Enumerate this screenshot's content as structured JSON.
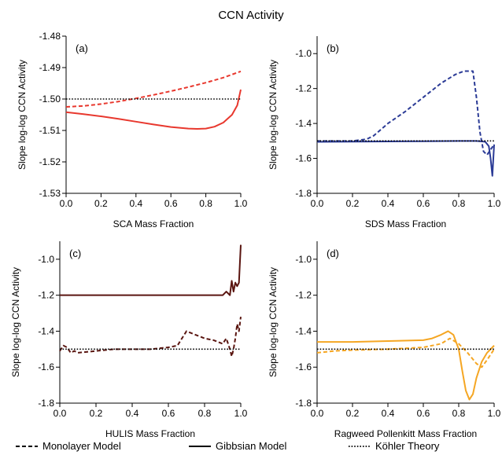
{
  "figure": {
    "title": "CCN Activity",
    "legend": [
      {
        "label": "Monolayer Model",
        "dash": "dashed"
      },
      {
        "label": "Gibbsian Model",
        "dash": "solid"
      },
      {
        "label": "Köhler Theory",
        "dash": "dotted"
      }
    ]
  },
  "chart_data": [
    {
      "type": "line",
      "panel": "(a)",
      "xlabel": "SCA Mass Fraction",
      "ylabel": "Slope log-log CCN Activity",
      "xlim": [
        0,
        1
      ],
      "ylim": [
        -1.53,
        -1.48
      ],
      "xticks": [
        0.0,
        0.2,
        0.4,
        0.6,
        0.8,
        1.0
      ],
      "xtick_labels": [
        "0.0",
        "0.2",
        "0.4",
        "0.6",
        "0.8",
        "1.0"
      ],
      "yticks": [
        -1.48,
        -1.49,
        -1.5,
        -1.51,
        -1.52,
        -1.53
      ],
      "ytick_labels": [
        "-1.48",
        "-1.49",
        "-1.50",
        "-1.51",
        "-1.52",
        "-1.53"
      ],
      "color": "#e8382e",
      "series": [
        {
          "name": "Monolayer Model",
          "style": "dashed",
          "x": [
            0,
            0.1,
            0.2,
            0.3,
            0.4,
            0.5,
            0.6,
            0.7,
            0.8,
            0.9,
            1.0
          ],
          "y": [
            -1.5025,
            -1.5022,
            -1.5016,
            -1.5008,
            -1.4998,
            -1.4987,
            -1.4975,
            -1.4962,
            -1.4948,
            -1.4932,
            -1.4912
          ]
        },
        {
          "name": "Gibbsian Model",
          "style": "solid",
          "x": [
            0,
            0.1,
            0.2,
            0.3,
            0.4,
            0.5,
            0.6,
            0.7,
            0.75,
            0.8,
            0.85,
            0.9,
            0.95,
            0.98,
            1.0
          ],
          "y": [
            -1.5042,
            -1.5048,
            -1.5055,
            -1.5063,
            -1.5072,
            -1.5081,
            -1.5089,
            -1.5094,
            -1.5095,
            -1.5094,
            -1.5088,
            -1.5075,
            -1.505,
            -1.502,
            -1.497
          ]
        },
        {
          "name": "Köhler Theory",
          "style": "dotted",
          "x": [
            0,
            1
          ],
          "y": [
            -1.5,
            -1.5
          ]
        }
      ]
    },
    {
      "type": "line",
      "panel": "(b)",
      "xlabel": "SDS Mass Fraction",
      "ylabel": "Slope log-log CCN Activity",
      "xlim": [
        0,
        1
      ],
      "ylim": [
        -1.8,
        -0.9
      ],
      "xticks": [
        0.0,
        0.2,
        0.4,
        0.6,
        0.8,
        1.0
      ],
      "xtick_labels": [
        "0.0",
        "0.2",
        "0.4",
        "0.6",
        "0.8",
        "1.0"
      ],
      "yticks": [
        -1.0,
        -1.2,
        -1.4,
        -1.6,
        -1.8
      ],
      "ytick_labels": [
        "-1.0",
        "-1.2",
        "-1.4",
        "-1.6",
        "-1.8"
      ],
      "color": "#2b3b96",
      "series": [
        {
          "name": "Monolayer Model",
          "style": "dashed",
          "x": [
            0,
            0.1,
            0.2,
            0.28,
            0.32,
            0.4,
            0.5,
            0.6,
            0.7,
            0.78,
            0.83,
            0.88,
            0.9,
            0.92,
            0.94,
            0.96,
            0.98,
            1.0
          ],
          "y": [
            -1.5,
            -1.5,
            -1.5,
            -1.49,
            -1.47,
            -1.4,
            -1.33,
            -1.25,
            -1.17,
            -1.12,
            -1.1,
            -1.1,
            -1.25,
            -1.45,
            -1.56,
            -1.58,
            -1.55,
            -1.52
          ]
        },
        {
          "name": "Gibbsian Model",
          "style": "solid",
          "x": [
            0,
            0.2,
            0.4,
            0.6,
            0.8,
            0.9,
            0.95,
            0.97,
            0.98,
            0.99,
            1.0
          ],
          "y": [
            -1.505,
            -1.504,
            -1.503,
            -1.502,
            -1.5,
            -1.5,
            -1.505,
            -1.53,
            -1.6,
            -1.7,
            -1.52
          ]
        },
        {
          "name": "Köhler Theory",
          "style": "dotted",
          "x": [
            0,
            1
          ],
          "y": [
            -1.5,
            -1.5
          ]
        }
      ]
    },
    {
      "type": "line",
      "panel": "(c)",
      "xlabel": "HULIS Mass Fraction",
      "ylabel": "Slope log-log CCN Activity",
      "xlim": [
        0,
        1
      ],
      "ylim": [
        -1.8,
        -0.9
      ],
      "xticks": [
        0.0,
        0.2,
        0.4,
        0.6,
        0.8,
        1.0
      ],
      "xtick_labels": [
        "0.0",
        "0.2",
        "0.4",
        "0.6",
        "0.8",
        "1.0"
      ],
      "yticks": [
        -1.0,
        -1.2,
        -1.4,
        -1.6,
        -1.8
      ],
      "ytick_labels": [
        "-1.0",
        "-1.2",
        "-1.4",
        "-1.6",
        "-1.8"
      ],
      "color": "#5a1510",
      "series": [
        {
          "name": "Monolayer Model",
          "style": "dashed",
          "x": [
            0,
            0.02,
            0.04,
            0.06,
            0.08,
            0.1,
            0.2,
            0.3,
            0.4,
            0.5,
            0.6,
            0.65,
            0.7,
            0.75,
            0.8,
            0.85,
            0.9,
            0.92,
            0.94,
            0.95,
            0.96,
            0.97,
            0.98,
            0.99,
            1.0
          ],
          "y": [
            -1.51,
            -1.48,
            -1.49,
            -1.52,
            -1.51,
            -1.52,
            -1.51,
            -1.5,
            -1.5,
            -1.5,
            -1.49,
            -1.48,
            -1.4,
            -1.42,
            -1.44,
            -1.45,
            -1.47,
            -1.44,
            -1.5,
            -1.54,
            -1.5,
            -1.44,
            -1.36,
            -1.4,
            -1.32
          ]
        },
        {
          "name": "Gibbsian Model",
          "style": "solid",
          "x": [
            0,
            0.2,
            0.4,
            0.6,
            0.8,
            0.9,
            0.92,
            0.94,
            0.95,
            0.96,
            0.97,
            0.98,
            0.99,
            1.0
          ],
          "y": [
            -1.2,
            -1.2,
            -1.2,
            -1.2,
            -1.2,
            -1.2,
            -1.18,
            -1.2,
            -1.12,
            -1.18,
            -1.13,
            -1.15,
            -1.13,
            -0.92
          ]
        },
        {
          "name": "Köhler Theory",
          "style": "dotted",
          "x": [
            0,
            1
          ],
          "y": [
            -1.5,
            -1.5
          ]
        }
      ]
    },
    {
      "type": "line",
      "panel": "(d)",
      "xlabel": "Ragweed Pollenkitt Mass Fraction",
      "ylabel": "Slope log-log CCN Activity",
      "xlim": [
        0,
        1
      ],
      "ylim": [
        -1.8,
        -0.9
      ],
      "xticks": [
        0.0,
        0.2,
        0.4,
        0.6,
        0.8,
        1.0
      ],
      "xtick_labels": [
        "0.0",
        "0.2",
        "0.4",
        "0.6",
        "0.8",
        "1.0"
      ],
      "yticks": [
        -1.0,
        -1.2,
        -1.4,
        -1.6,
        -1.8
      ],
      "ytick_labels": [
        "-1.0",
        "-1.2",
        "-1.4",
        "-1.6",
        "-1.8"
      ],
      "color": "#f5a623",
      "series": [
        {
          "name": "Monolayer Model",
          "style": "dashed",
          "x": [
            0,
            0.1,
            0.2,
            0.4,
            0.6,
            0.7,
            0.75,
            0.8,
            0.85,
            0.9,
            0.93,
            0.96,
            1.0
          ],
          "y": [
            -1.52,
            -1.51,
            -1.505,
            -1.5,
            -1.49,
            -1.47,
            -1.44,
            -1.47,
            -1.52,
            -1.58,
            -1.6,
            -1.56,
            -1.5
          ]
        },
        {
          "name": "Gibbsian Model",
          "style": "solid",
          "x": [
            0,
            0.2,
            0.4,
            0.6,
            0.65,
            0.7,
            0.74,
            0.77,
            0.8,
            0.82,
            0.84,
            0.86,
            0.88,
            0.9,
            0.93,
            0.96,
            1.0
          ],
          "y": [
            -1.46,
            -1.46,
            -1.455,
            -1.45,
            -1.44,
            -1.42,
            -1.4,
            -1.42,
            -1.5,
            -1.62,
            -1.73,
            -1.78,
            -1.75,
            -1.66,
            -1.57,
            -1.52,
            -1.48
          ]
        },
        {
          "name": "Köhler Theory",
          "style": "dotted",
          "x": [
            0,
            1
          ],
          "y": [
            -1.5,
            -1.5
          ]
        }
      ]
    }
  ]
}
